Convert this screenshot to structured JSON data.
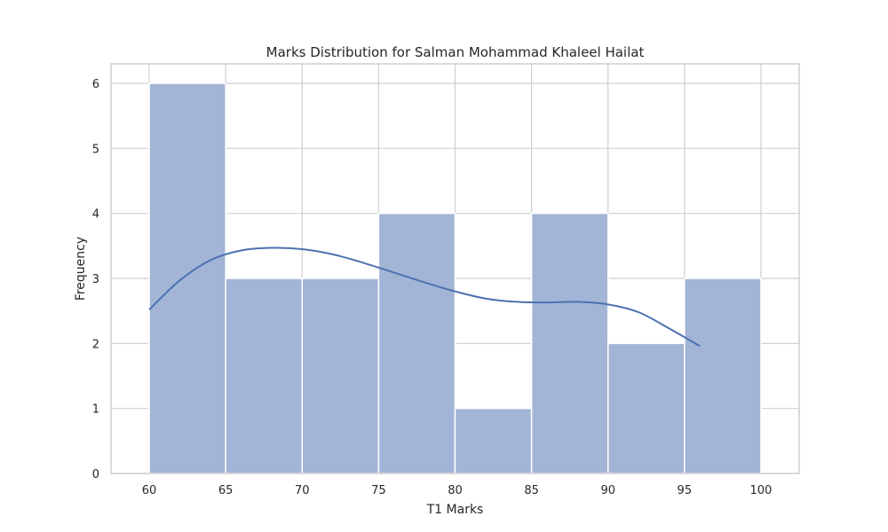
{
  "chart_data": {
    "type": "bar",
    "subtype": "histogram-with-kde",
    "title": "Marks Distribution for Salman Mohammad Khaleel Hailat",
    "xlabel": "T1 Marks",
    "ylabel": "Frequency",
    "bins": [
      {
        "start": 60,
        "end": 65,
        "count": 6
      },
      {
        "start": 65,
        "end": 70,
        "count": 3
      },
      {
        "start": 70,
        "end": 75,
        "count": 3
      },
      {
        "start": 75,
        "end": 80,
        "count": 4
      },
      {
        "start": 80,
        "end": 85,
        "count": 1
      },
      {
        "start": 85,
        "end": 90,
        "count": 4
      },
      {
        "start": 90,
        "end": 95,
        "count": 2
      },
      {
        "start": 95,
        "end": 100,
        "count": 3
      }
    ],
    "kde": {
      "x": [
        60,
        62,
        64,
        66,
        68,
        70,
        72,
        74,
        76,
        78,
        80,
        82,
        84,
        86,
        88,
        90,
        92,
        94,
        96
      ],
      "y": [
        2.52,
        2.97,
        3.28,
        3.43,
        3.47,
        3.45,
        3.37,
        3.24,
        3.09,
        2.94,
        2.8,
        2.69,
        2.64,
        2.63,
        2.64,
        2.6,
        2.48,
        2.23,
        1.96
      ]
    },
    "xticks": [
      60,
      65,
      70,
      75,
      80,
      85,
      90,
      95,
      100
    ],
    "yticks": [
      0,
      1,
      2,
      3,
      4,
      5,
      6
    ],
    "xlim": [
      57.5,
      102.5
    ],
    "ylim": [
      0,
      6.3
    ],
    "grid": true,
    "colors": {
      "bar": "#a3b5d6",
      "kde": "#4c72b0",
      "grid": "#cfcfcf"
    }
  }
}
